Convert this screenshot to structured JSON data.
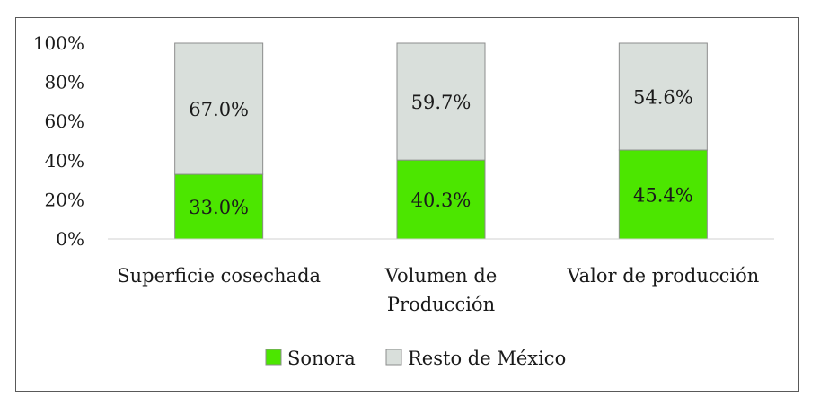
{
  "chart_data": {
    "type": "bar",
    "stacked": true,
    "percent": true,
    "categories": [
      [
        "Superficie cosechada"
      ],
      [
        "Volumen de",
        "Producción"
      ],
      [
        "Valor de producción"
      ]
    ],
    "series": [
      {
        "name": "Sonora",
        "values": [
          33.0,
          40.3,
          45.4
        ],
        "labels": [
          "33.0%",
          "40.3%",
          "45.4%"
        ],
        "color": "#4CE600"
      },
      {
        "name": "Resto de México",
        "values": [
          67.0,
          59.7,
          54.6
        ],
        "labels": [
          "67.0%",
          "59.7%",
          "54.6%"
        ],
        "color": "#D9DFDB"
      }
    ],
    "yticks": [
      "0%",
      "20%",
      "40%",
      "60%",
      "80%",
      "100%"
    ],
    "ylim": [
      0,
      100
    ],
    "grid": false,
    "legend": "bottom"
  }
}
